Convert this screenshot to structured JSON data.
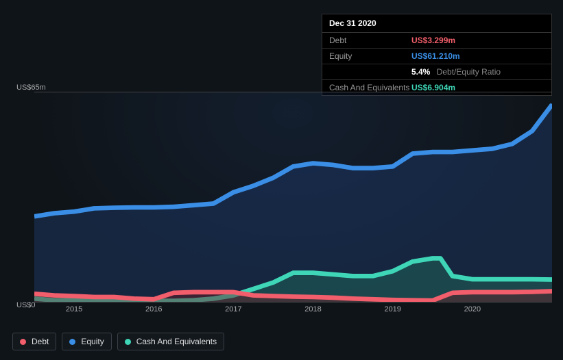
{
  "tooltip": {
    "date": "Dec 31 2020",
    "rows": [
      {
        "label": "Debt",
        "value": "US$3.299m",
        "color": "#f25e6b",
        "suffix": ""
      },
      {
        "label": "Equity",
        "value": "US$61.210m",
        "color": "#3a8ee6",
        "suffix": ""
      },
      {
        "label": "",
        "value": "5.4%",
        "color": "#ffffff",
        "suffix": "Debt/Equity Ratio"
      },
      {
        "label": "Cash And Equivalents",
        "value": "US$6.904m",
        "color": "#3ed6b7",
        "suffix": ""
      }
    ]
  },
  "chart": {
    "type": "area-line",
    "background": "#0f1419",
    "grid_line_color": "#444444",
    "ylabel_top": "US$65m",
    "ylabel_bottom": "US$0",
    "ylim": [
      0,
      65
    ],
    "xlim": [
      2014.5,
      2021.0
    ],
    "xticks": [
      2015,
      2016,
      2017,
      2018,
      2019,
      2020
    ],
    "xtick_labels": [
      "2015",
      "2016",
      "2017",
      "2018",
      "2019",
      "2020"
    ],
    "label_fontsize": 11,
    "label_color": "#aaaaaa",
    "series": {
      "equity": {
        "label": "Equity",
        "color": "#3a8ee6",
        "fill_color": "#1e3c6e",
        "fill_opacity": 0.45,
        "line_width": 2,
        "points": [
          [
            2014.5,
            26.5
          ],
          [
            2014.75,
            27.5
          ],
          [
            2015.0,
            28.0
          ],
          [
            2015.25,
            29.0
          ],
          [
            2015.5,
            29.2
          ],
          [
            2015.75,
            29.3
          ],
          [
            2016.0,
            29.3
          ],
          [
            2016.25,
            29.5
          ],
          [
            2016.5,
            30.0
          ],
          [
            2016.75,
            30.5
          ],
          [
            2017.0,
            34.0
          ],
          [
            2017.25,
            36.0
          ],
          [
            2017.5,
            38.5
          ],
          [
            2017.75,
            42.0
          ],
          [
            2018.0,
            43.0
          ],
          [
            2018.25,
            42.5
          ],
          [
            2018.5,
            41.5
          ],
          [
            2018.75,
            41.5
          ],
          [
            2019.0,
            42.0
          ],
          [
            2019.25,
            46.0
          ],
          [
            2019.5,
            46.5
          ],
          [
            2019.75,
            46.5
          ],
          [
            2020.0,
            47.0
          ],
          [
            2020.25,
            47.5
          ],
          [
            2020.5,
            49.0
          ],
          [
            2020.75,
            53.0
          ],
          [
            2021.0,
            61.2
          ]
        ]
      },
      "cash": {
        "label": "Cash And Equivalents",
        "color": "#3ed6b7",
        "fill_color": "#1e6e5e",
        "fill_opacity": 0.45,
        "line_width": 2,
        "points": [
          [
            2014.5,
            1.0
          ],
          [
            2014.75,
            0.5
          ],
          [
            2015.0,
            0.5
          ],
          [
            2015.25,
            0.5
          ],
          [
            2015.5,
            0.5
          ],
          [
            2015.75,
            0.5
          ],
          [
            2016.0,
            0.3
          ],
          [
            2016.25,
            0.3
          ],
          [
            2016.5,
            0.5
          ],
          [
            2016.75,
            1.0
          ],
          [
            2017.0,
            2.0
          ],
          [
            2017.25,
            4.0
          ],
          [
            2017.5,
            6.0
          ],
          [
            2017.75,
            9.0
          ],
          [
            2018.0,
            9.0
          ],
          [
            2018.25,
            8.5
          ],
          [
            2018.5,
            8.0
          ],
          [
            2018.75,
            8.0
          ],
          [
            2019.0,
            9.5
          ],
          [
            2019.25,
            12.5
          ],
          [
            2019.5,
            13.5
          ],
          [
            2019.6,
            13.5
          ],
          [
            2019.75,
            8.0
          ],
          [
            2020.0,
            7.0
          ],
          [
            2020.25,
            7.0
          ],
          [
            2020.5,
            7.0
          ],
          [
            2020.75,
            7.0
          ],
          [
            2021.0,
            6.9
          ]
        ]
      },
      "debt": {
        "label": "Debt",
        "color": "#f25e6b",
        "fill_color": "#6e1e28",
        "fill_opacity": 0.45,
        "line_width": 2,
        "points": [
          [
            2014.5,
            2.5
          ],
          [
            2014.75,
            2.0
          ],
          [
            2015.0,
            1.8
          ],
          [
            2015.25,
            1.5
          ],
          [
            2015.5,
            1.5
          ],
          [
            2015.75,
            1.0
          ],
          [
            2016.0,
            0.8
          ],
          [
            2016.25,
            2.8
          ],
          [
            2016.5,
            3.0
          ],
          [
            2016.75,
            3.0
          ],
          [
            2017.0,
            3.0
          ],
          [
            2017.25,
            2.0
          ],
          [
            2017.5,
            1.8
          ],
          [
            2017.75,
            1.6
          ],
          [
            2018.0,
            1.5
          ],
          [
            2018.25,
            1.3
          ],
          [
            2018.5,
            1.0
          ],
          [
            2018.75,
            0.8
          ],
          [
            2019.0,
            0.6
          ],
          [
            2019.25,
            0.5
          ],
          [
            2019.5,
            0.4
          ],
          [
            2019.75,
            2.8
          ],
          [
            2020.0,
            3.0
          ],
          [
            2020.25,
            3.0
          ],
          [
            2020.5,
            3.0
          ],
          [
            2020.75,
            3.1
          ],
          [
            2021.0,
            3.3
          ]
        ]
      }
    },
    "end_markers": [
      {
        "series": "equity",
        "color": "#3a8ee6"
      },
      {
        "series": "cash",
        "color": "#3ed6b7"
      },
      {
        "series": "debt",
        "color": "#f25e6b"
      }
    ]
  },
  "legend": {
    "items": [
      {
        "label": "Debt",
        "color": "#f25e6b"
      },
      {
        "label": "Equity",
        "color": "#3a8ee6"
      },
      {
        "label": "Cash And Equivalents",
        "color": "#3ed6b7"
      }
    ]
  }
}
